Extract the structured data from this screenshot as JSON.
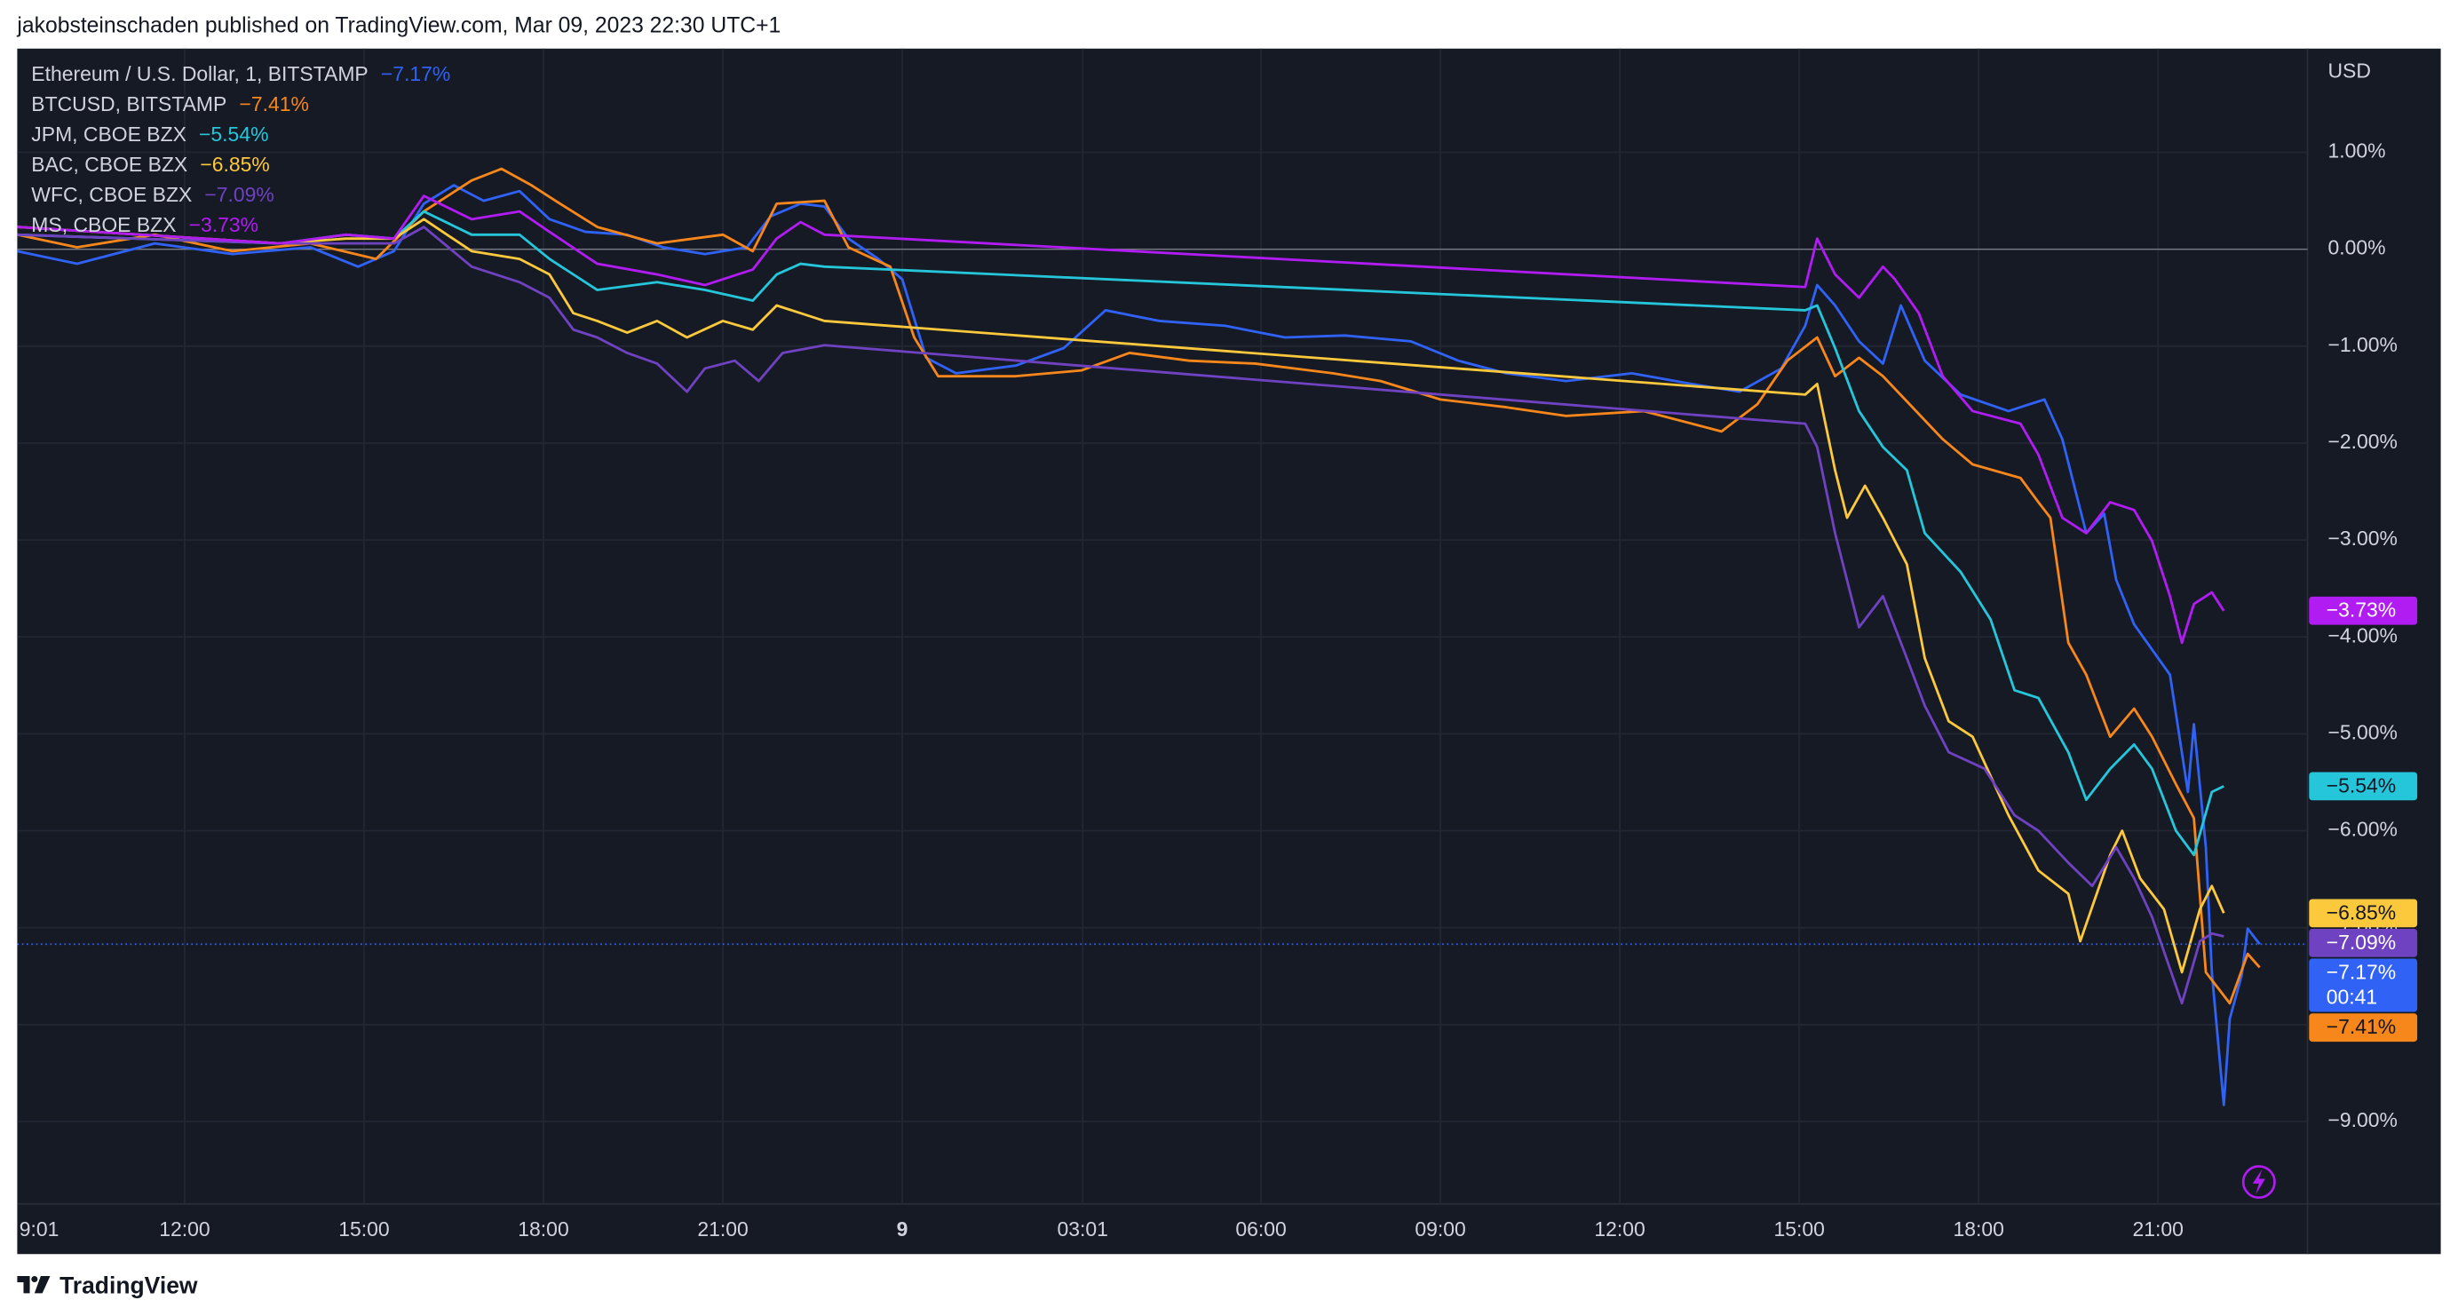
{
  "header": "jakobsteinschaden published on TradingView.com, Mar 09, 2023 22:30 UTC+1",
  "footer": "TradingView",
  "chart_data": {
    "type": "line",
    "y_axis_label": "USD",
    "legend": "top-left",
    "grid": true,
    "xlim": [
      9.2,
      47.5
    ],
    "ylim": [
      -9.85,
      2.07
    ],
    "xticks": [
      {
        "value": 9.0167,
        "label": "9:01"
      },
      {
        "value": 12,
        "label": "12:00"
      },
      {
        "value": 15,
        "label": "15:00"
      },
      {
        "value": 18,
        "label": "18:00"
      },
      {
        "value": 21,
        "label": "21:00"
      },
      {
        "value": 24,
        "label": "9"
      },
      {
        "value": 27.0167,
        "label": "03:01"
      },
      {
        "value": 30,
        "label": "06:00"
      },
      {
        "value": 33,
        "label": "09:00"
      },
      {
        "value": 36,
        "label": "12:00"
      },
      {
        "value": 39,
        "label": "15:00"
      },
      {
        "value": 42,
        "label": "18:00"
      },
      {
        "value": 45,
        "label": "21:00"
      }
    ],
    "yticks": [
      {
        "value": 1,
        "label": "1.00%"
      },
      {
        "value": 0,
        "label": "0.00%"
      },
      {
        "value": -1,
        "label": "−1.00%"
      },
      {
        "value": -2,
        "label": "−2.00%"
      },
      {
        "value": -3,
        "label": "−3.00%"
      },
      {
        "value": -4,
        "label": "−4.00%"
      },
      {
        "value": -5,
        "label": "−5.00%"
      },
      {
        "value": -6,
        "label": "−6.00%"
      },
      {
        "value": -7,
        "label": "−7.00%"
      },
      {
        "value": -8,
        "label": "−8.00%"
      },
      {
        "value": -9,
        "label": "−9.00%"
      }
    ],
    "series": [
      {
        "name": "Ethereum / U.S. Dollar, 1, BITSTAMP",
        "change_label": "−7.17%",
        "countdown": "00:41",
        "color": "#2f62f5",
        "x": [
          9.2,
          10.2,
          11.5,
          12.8,
          14.1,
          14.9,
          15.5,
          16.0,
          16.5,
          17.0,
          17.6,
          18.1,
          18.7,
          19.4,
          20.0,
          20.7,
          21.4,
          21.8,
          22.3,
          22.7,
          23.1,
          23.6,
          24.0,
          24.4,
          24.9,
          25.9,
          26.7,
          27.4,
          28.3,
          29.4,
          30.4,
          31.4,
          32.5,
          33.3,
          34.1,
          35.1,
          36.2,
          37.2,
          38.0,
          38.7,
          39.1,
          39.3,
          39.6,
          40.0,
          40.4,
          40.7,
          41.1,
          41.7,
          42.5,
          43.1,
          43.4,
          43.8,
          44.1,
          44.3,
          44.6,
          45.2,
          45.5,
          45.6,
          45.8,
          45.9,
          46.1,
          46.2,
          46.4,
          46.5,
          46.7
        ],
        "values": [
          -0.02,
          -0.15,
          0.06,
          -0.05,
          0.02,
          -0.18,
          -0.02,
          0.47,
          0.66,
          0.5,
          0.6,
          0.31,
          0.18,
          0.15,
          0.02,
          -0.05,
          0.02,
          0.34,
          0.47,
          0.44,
          0.11,
          -0.1,
          -0.31,
          -1.12,
          -1.28,
          -1.2,
          -1.02,
          -0.63,
          -0.74,
          -0.79,
          -0.91,
          -0.89,
          -0.95,
          -1.15,
          -1.28,
          -1.36,
          -1.28,
          -1.39,
          -1.47,
          -1.23,
          -0.79,
          -0.37,
          -0.58,
          -0.95,
          -1.18,
          -0.58,
          -1.15,
          -1.5,
          -1.67,
          -1.55,
          -1.96,
          -2.93,
          -2.73,
          -3.41,
          -3.87,
          -4.39,
          -5.6,
          -4.9,
          -6.17,
          -7.46,
          -8.83,
          -7.94,
          -7.49,
          -7.01,
          -7.17
        ]
      },
      {
        "name": "BTCUSD, BITSTAMP",
        "change_label": "−7.41%",
        "color": "#f7861b",
        "x": [
          9.2,
          10.2,
          11.5,
          12.8,
          14.1,
          15.2,
          16.0,
          16.8,
          17.3,
          17.8,
          18.2,
          18.9,
          19.9,
          21.0,
          21.5,
          21.9,
          22.7,
          23.1,
          23.8,
          24.2,
          24.6,
          25.9,
          27.0,
          27.8,
          28.8,
          29.9,
          31.2,
          32.0,
          33.0,
          34.1,
          35.1,
          36.4,
          37.7,
          38.3,
          38.8,
          39.3,
          39.6,
          40.0,
          40.4,
          41.4,
          41.9,
          42.7,
          43.0,
          43.2,
          43.5,
          43.8,
          44.2,
          44.6,
          44.9,
          45.3,
          45.6,
          45.8,
          46.2,
          46.5,
          46.7
        ],
        "values": [
          0.15,
          0.02,
          0.15,
          -0.02,
          0.06,
          -0.1,
          0.39,
          0.71,
          0.83,
          0.66,
          0.5,
          0.23,
          0.06,
          0.15,
          -0.02,
          0.47,
          0.5,
          0.02,
          -0.18,
          -0.91,
          -1.31,
          -1.31,
          -1.25,
          -1.07,
          -1.15,
          -1.18,
          -1.28,
          -1.36,
          -1.55,
          -1.63,
          -1.72,
          -1.67,
          -1.88,
          -1.6,
          -1.15,
          -0.91,
          -1.31,
          -1.12,
          -1.31,
          -1.96,
          -2.22,
          -2.36,
          -2.61,
          -2.77,
          -4.06,
          -4.39,
          -5.03,
          -4.74,
          -5.03,
          -5.52,
          -5.87,
          -7.46,
          -7.78,
          -7.27,
          -7.41
        ]
      },
      {
        "name": "JPM, CBOE BZX",
        "change_label": "−5.54%",
        "color": "#26c6da",
        "x": [
          9.2,
          13.6,
          14.7,
          15.5,
          16.0,
          16.8,
          17.6,
          18.1,
          18.9,
          19.9,
          20.7,
          21.5,
          21.9,
          22.3,
          22.7,
          39.1,
          39.3,
          39.6,
          40.0,
          40.4,
          40.8,
          41.1,
          41.7,
          42.2,
          42.6,
          43.0,
          43.5,
          43.8,
          44.2,
          44.6,
          44.9,
          45.3,
          45.6,
          45.9,
          46.1
        ],
        "values": [
          0.15,
          0.06,
          0.15,
          0.11,
          0.39,
          0.15,
          0.15,
          -0.1,
          -0.42,
          -0.34,
          -0.42,
          -0.53,
          -0.26,
          -0.15,
          -0.18,
          -0.63,
          -0.58,
          -1.02,
          -1.67,
          -2.04,
          -2.28,
          -2.93,
          -3.33,
          -3.82,
          -4.55,
          -4.63,
          -5.19,
          -5.68,
          -5.36,
          -5.11,
          -5.36,
          -6.0,
          -6.25,
          -5.6,
          -5.54
        ]
      },
      {
        "name": "BAC, CBOE BZX",
        "change_label": "−6.85%",
        "color": "#fcc83c",
        "x": [
          9.2,
          13.6,
          14.7,
          15.5,
          16.0,
          16.8,
          17.6,
          18.1,
          18.5,
          18.9,
          19.4,
          19.9,
          20.4,
          21.0,
          21.5,
          21.9,
          22.3,
          22.7,
          39.1,
          39.3,
          39.6,
          39.8,
          40.1,
          40.4,
          40.8,
          41.1,
          41.5,
          41.9,
          42.5,
          43.0,
          43.5,
          43.7,
          44.2,
          44.4,
          44.7,
          45.1,
          45.4,
          45.7,
          45.9,
          46.1
        ],
        "values": [
          0.23,
          0.06,
          0.11,
          0.11,
          0.31,
          -0.02,
          -0.1,
          -0.26,
          -0.66,
          -0.74,
          -0.86,
          -0.74,
          -0.91,
          -0.74,
          -0.83,
          -0.58,
          -0.66,
          -0.74,
          -1.5,
          -1.39,
          -2.28,
          -2.77,
          -2.44,
          -2.77,
          -3.25,
          -4.22,
          -4.87,
          -5.03,
          -5.84,
          -6.41,
          -6.65,
          -7.14,
          -6.25,
          -6.0,
          -6.49,
          -6.81,
          -7.46,
          -6.81,
          -6.57,
          -6.85
        ]
      },
      {
        "name": "WFC, CBOE BZX",
        "change_label": "−7.09%",
        "color": "#6f42c1",
        "x": [
          9.2,
          13.6,
          14.7,
          15.5,
          16.0,
          16.8,
          17.6,
          18.1,
          18.5,
          18.9,
          19.4,
          19.9,
          20.4,
          20.7,
          21.2,
          21.6,
          22.0,
          22.7,
          39.1,
          39.3,
          39.6,
          40.0,
          40.4,
          40.8,
          41.1,
          41.5,
          42.1,
          42.6,
          43.0,
          43.5,
          43.9,
          44.3,
          44.6,
          44.9,
          45.4,
          45.7,
          45.9,
          46.1
        ],
        "values": [
          0.15,
          0.06,
          0.06,
          0.06,
          0.23,
          -0.18,
          -0.34,
          -0.5,
          -0.83,
          -0.91,
          -1.07,
          -1.18,
          -1.47,
          -1.23,
          -1.15,
          -1.36,
          -1.07,
          -0.99,
          -1.8,
          -2.04,
          -2.93,
          -3.9,
          -3.58,
          -4.22,
          -4.71,
          -5.19,
          -5.36,
          -5.84,
          -6.0,
          -6.33,
          -6.57,
          -6.17,
          -6.49,
          -6.89,
          -7.78,
          -7.14,
          -7.06,
          -7.09
        ]
      },
      {
        "name": "MS, CBOE BZX",
        "change_label": "−3.73%",
        "color": "#b01cf2",
        "x": [
          9.2,
          13.6,
          14.7,
          15.5,
          16.0,
          16.8,
          17.6,
          18.1,
          18.9,
          19.9,
          20.7,
          21.5,
          21.9,
          22.3,
          22.7,
          39.1,
          39.3,
          39.6,
          40.0,
          40.4,
          40.6,
          41.0,
          41.4,
          41.9,
          42.7,
          43.0,
          43.4,
          43.8,
          44.2,
          44.6,
          44.9,
          45.2,
          45.4,
          45.6,
          45.9,
          46.1
        ],
        "values": [
          0.23,
          0.06,
          0.15,
          0.11,
          0.55,
          0.31,
          0.39,
          0.18,
          -0.15,
          -0.26,
          -0.37,
          -0.21,
          0.11,
          0.28,
          0.15,
          -0.39,
          0.11,
          -0.26,
          -0.5,
          -0.18,
          -0.31,
          -0.66,
          -1.31,
          -1.67,
          -1.8,
          -2.12,
          -2.77,
          -2.93,
          -2.61,
          -2.69,
          -3.01,
          -3.58,
          -4.06,
          -3.66,
          -3.54,
          -3.73
        ]
      }
    ]
  }
}
